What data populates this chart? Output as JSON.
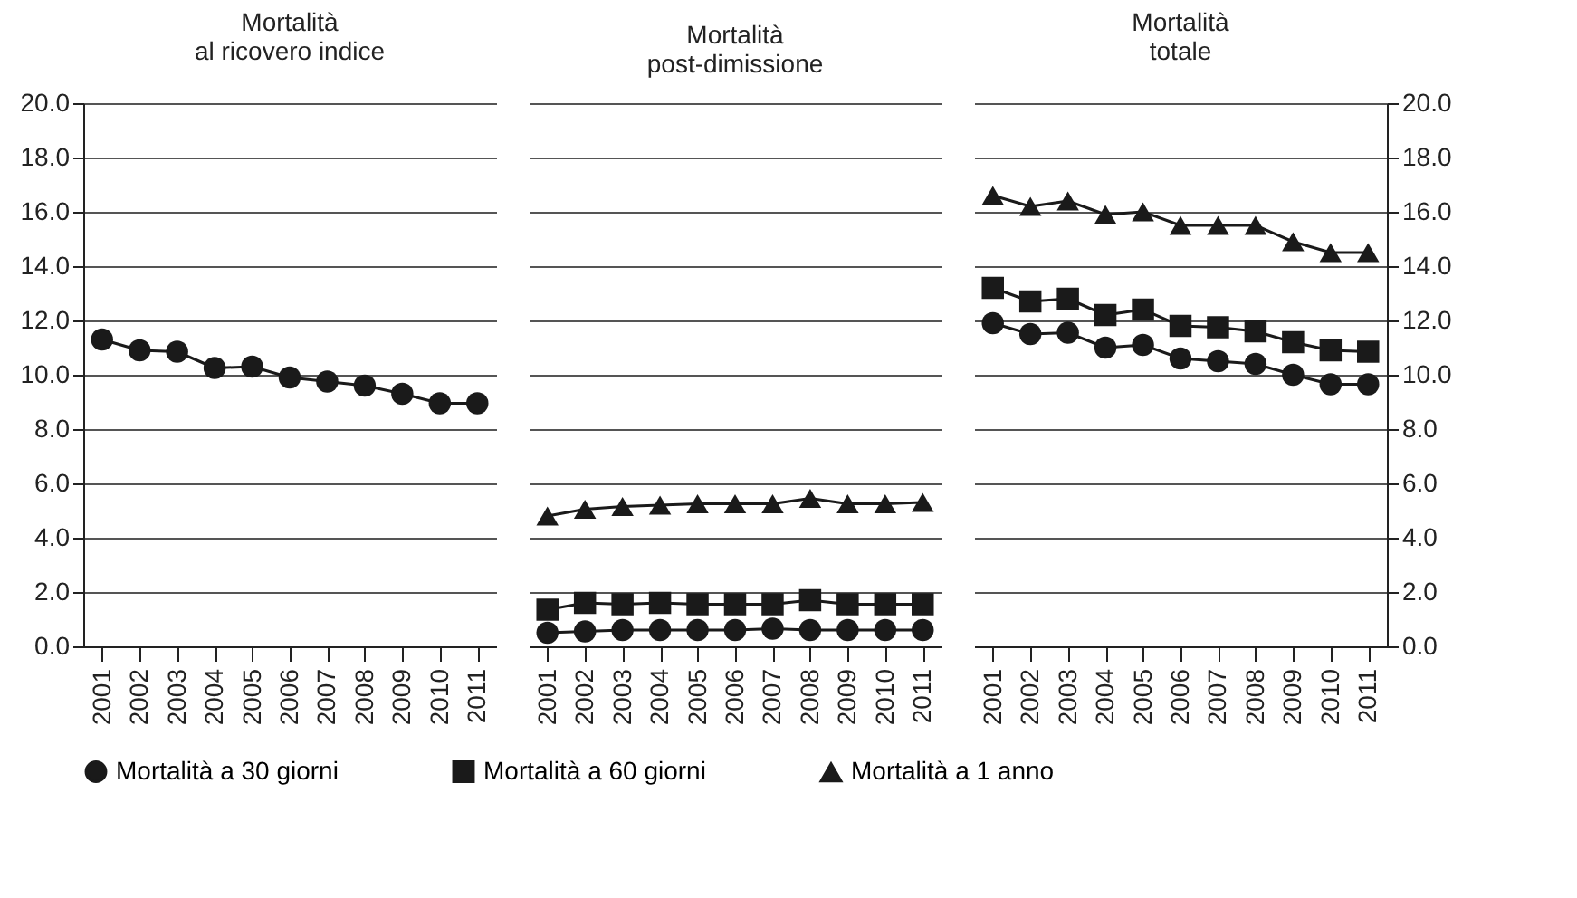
{
  "chart_data": [
    {
      "type": "line",
      "title": "Mortalità\nal ricovero indice",
      "categories": [
        "2001",
        "2002",
        "2003",
        "2004",
        "2005",
        "2006",
        "2007",
        "2008",
        "2009",
        "2010",
        "2011"
      ],
      "ylim": [
        0,
        20
      ],
      "yticks": [
        {
          "value": 0,
          "label": "0.0"
        },
        {
          "value": 2,
          "label": "2.0"
        },
        {
          "value": 4,
          "label": "4.0"
        },
        {
          "value": 6,
          "label": "6.0"
        },
        {
          "value": 8,
          "label": "8.0"
        },
        {
          "value": 10,
          "label": "10.0"
        },
        {
          "value": 12,
          "label": "12.0"
        },
        {
          "value": 14,
          "label": "14.0"
        },
        {
          "value": 16,
          "label": "16.0"
        },
        {
          "value": 18,
          "label": "18.0"
        },
        {
          "value": 20,
          "label": "20.0"
        }
      ],
      "grid": "y",
      "legend": "bottom",
      "series": [
        {
          "name": "Mortalità a 30 giorni",
          "color": "#1a1a1a",
          "marker": "circle",
          "values": [
            11.3,
            10.9,
            10.85,
            10.25,
            10.3,
            9.9,
            9.75,
            9.6,
            9.3,
            8.95,
            8.95
          ]
        }
      ]
    },
    {
      "type": "line",
      "title": "Mortalità\npost-dimissione",
      "categories": [
        "2001",
        "2002",
        "2003",
        "2004",
        "2005",
        "2006",
        "2007",
        "2008",
        "2009",
        "2010",
        "2011"
      ],
      "ylim": [
        0,
        20
      ],
      "yticks": [
        {
          "value": 0,
          "label": "0.0"
        },
        {
          "value": 2,
          "label": "2.0"
        },
        {
          "value": 4,
          "label": "4.0"
        },
        {
          "value": 6,
          "label": "6.0"
        },
        {
          "value": 8,
          "label": "8.0"
        },
        {
          "value": 10,
          "label": "10.0"
        },
        {
          "value": 12,
          "label": "12.0"
        },
        {
          "value": 14,
          "label": "14.0"
        },
        {
          "value": 16,
          "label": "16.0"
        },
        {
          "value": 18,
          "label": "18.0"
        },
        {
          "value": 20,
          "label": "20.0"
        }
      ],
      "grid": "y",
      "legend": "bottom",
      "tick_labels": "x",
      "series": [
        {
          "name": "Mortalità a 30 giorni",
          "color": "#1a1a1a",
          "marker": "circle",
          "values": [
            0.5,
            0.55,
            0.6,
            0.6,
            0.6,
            0.6,
            0.65,
            0.6,
            0.6,
            0.6,
            0.6
          ]
        },
        {
          "name": "Mortalità a 60 giorni",
          "color": "#1a1a1a",
          "marker": "square",
          "values": [
            1.35,
            1.6,
            1.55,
            1.6,
            1.55,
            1.55,
            1.55,
            1.7,
            1.55,
            1.55,
            1.55
          ]
        },
        {
          "name": "Mortalità a 1 anno",
          "color": "#1a1a1a",
          "marker": "triangle",
          "values": [
            4.8,
            5.05,
            5.15,
            5.2,
            5.25,
            5.25,
            5.25,
            5.45,
            5.25,
            5.25,
            5.3
          ]
        }
      ]
    },
    {
      "type": "line",
      "title": "Mortalità\ntotale",
      "categories": [
        "2001",
        "2002",
        "2003",
        "2004",
        "2005",
        "2006",
        "2007",
        "2008",
        "2009",
        "2010",
        "2011"
      ],
      "y2lim": [
        0,
        20
      ],
      "y2ticks": [
        {
          "value": 0,
          "label": "0.0"
        },
        {
          "value": 2,
          "label": "2.0"
        },
        {
          "value": 4,
          "label": "4.0"
        },
        {
          "value": 6,
          "label": "6.0"
        },
        {
          "value": 8,
          "label": "8.0"
        },
        {
          "value": 10,
          "label": "10.0"
        },
        {
          "value": 12,
          "label": "12.0"
        },
        {
          "value": 14,
          "label": "14.0"
        },
        {
          "value": 16,
          "label": "16.0"
        },
        {
          "value": 18,
          "label": "18.0"
        },
        {
          "value": 20,
          "label": "20.0"
        }
      ],
      "grid": "y",
      "legend": "bottom",
      "series": [
        {
          "name": "Mortalità a 30 giorni",
          "color": "#1a1a1a",
          "marker": "circle",
          "axis": "y2",
          "values": [
            11.9,
            11.5,
            11.55,
            11.0,
            11.1,
            10.6,
            10.5,
            10.4,
            10.0,
            9.65,
            9.65
          ]
        },
        {
          "name": "Mortalità a 60 giorni",
          "color": "#1a1a1a",
          "marker": "square",
          "axis": "y2",
          "values": [
            13.2,
            12.7,
            12.8,
            12.2,
            12.4,
            11.8,
            11.75,
            11.6,
            11.2,
            10.9,
            10.85
          ]
        },
        {
          "name": "Mortalità a 1 anno",
          "color": "#1a1a1a",
          "marker": "triangle",
          "axis": "y2",
          "values": [
            16.6,
            16.2,
            16.4,
            15.9,
            16.0,
            15.5,
            15.5,
            15.5,
            14.9,
            14.5,
            14.5
          ]
        }
      ]
    }
  ]
}
